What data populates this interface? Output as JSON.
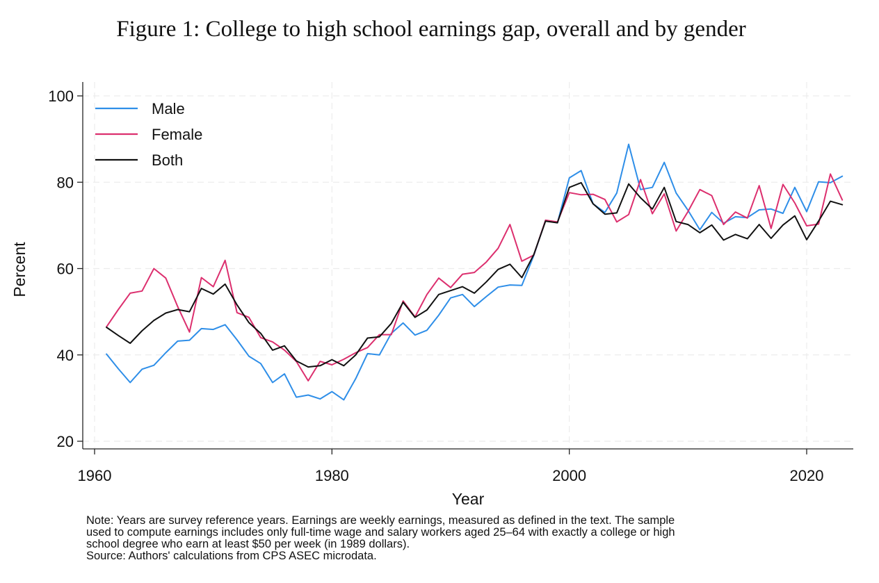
{
  "chart_data": {
    "type": "line",
    "title": "Figure 1: College to high school earnings gap, overall and by gender",
    "xlabel": "Year",
    "ylabel": "Percent",
    "xlim": [
      1960,
      2024
    ],
    "ylim": [
      20,
      100
    ],
    "xticks": [
      1960,
      1980,
      2000,
      2020
    ],
    "yticks": [
      20,
      40,
      60,
      80,
      100
    ],
    "grid": true,
    "legend_position": "top-left",
    "x": [
      1961,
      1962,
      1963,
      1964,
      1965,
      1966,
      1967,
      1968,
      1969,
      1970,
      1971,
      1972,
      1973,
      1974,
      1975,
      1976,
      1977,
      1978,
      1979,
      1980,
      1981,
      1982,
      1983,
      1984,
      1985,
      1986,
      1987,
      1988,
      1989,
      1990,
      1991,
      1992,
      1993,
      1994,
      1995,
      1996,
      1997,
      1998,
      1999,
      2000,
      2001,
      2002,
      2003,
      2004,
      2005,
      2006,
      2007,
      2008,
      2009,
      2010,
      2011,
      2012,
      2013,
      2014,
      2015,
      2016,
      2017,
      2018,
      2019,
      2020,
      2021,
      2022,
      2023
    ],
    "series": [
      {
        "name": "Male",
        "color": "#2e8ee8",
        "values": [
          40.2,
          36.8,
          33.6,
          36.7,
          37.6,
          40.5,
          43.2,
          43.4,
          46.1,
          45.9,
          47.0,
          43.5,
          39.7,
          38.0,
          33.6,
          35.6,
          30.2,
          30.7,
          29.8,
          31.5,
          29.6,
          34.5,
          40.3,
          40.0,
          45.0,
          47.4,
          44.6,
          45.7,
          49.2,
          53.2,
          54.0,
          51.2,
          53.5,
          55.7,
          56.2,
          56.1,
          63.0,
          71.2,
          70.6,
          81.0,
          82.7,
          75.0,
          73.0,
          77.5,
          88.8,
          78.3,
          78.8,
          84.6,
          77.5,
          73.5,
          69.0,
          73.0,
          70.5,
          72.0,
          71.8,
          73.6,
          73.8,
          72.8,
          78.8,
          73.2,
          80.1,
          79.9,
          81.4
        ]
      },
      {
        "name": "Female",
        "color": "#dc2f6e",
        "values": [
          46.5,
          50.5,
          54.3,
          54.8,
          60.0,
          57.8,
          51.2,
          45.3,
          57.9,
          55.8,
          61.9,
          49.8,
          48.7,
          44.0,
          43.0,
          41.1,
          38.5,
          34.0,
          38.5,
          37.7,
          39.0,
          40.5,
          41.7,
          44.7,
          44.7,
          52.5,
          48.8,
          54.0,
          57.8,
          55.6,
          58.7,
          59.1,
          61.5,
          64.7,
          70.2,
          61.7,
          63.1,
          71.2,
          70.8,
          77.6,
          77.1,
          77.2,
          76.0,
          70.8,
          72.5,
          80.6,
          72.7,
          77.3,
          68.7,
          73.2,
          78.3,
          76.9,
          70.2,
          73.1,
          71.7,
          79.2,
          69.3,
          79.5,
          75.2,
          69.9,
          70.3,
          81.9,
          75.9
        ]
      },
      {
        "name": "Both",
        "color": "#111111",
        "values": [
          46.4,
          44.5,
          42.7,
          45.6,
          48.0,
          49.7,
          50.5,
          50.0,
          55.4,
          54.1,
          56.4,
          51.6,
          47.5,
          45.0,
          41.1,
          42.1,
          38.6,
          37.2,
          37.5,
          38.9,
          37.5,
          40.0,
          43.9,
          44.2,
          47.3,
          52.2,
          48.7,
          50.4,
          54.0,
          54.9,
          55.8,
          54.3,
          56.9,
          59.8,
          61.0,
          57.9,
          63.2,
          71.0,
          70.6,
          78.8,
          79.9,
          75.0,
          72.6,
          72.9,
          79.6,
          76.4,
          73.8,
          78.8,
          70.9,
          70.2,
          68.3,
          70.1,
          66.6,
          67.9,
          66.9,
          70.2,
          67.0,
          70.1,
          72.2,
          66.7,
          71.0,
          75.6,
          74.8
        ]
      }
    ]
  },
  "note": {
    "lines": [
      "Note: Years are survey reference years. Earnings are weekly earnings, measured as defined in the text. The sample",
      "used to compute earnings includes only full-time wage and salary workers aged 25–64 with exactly a college or high",
      "school degree who earn at least $50 per week (in 1989 dollars).",
      "Source: Authors' calculations from CPS ASEC microdata."
    ]
  }
}
